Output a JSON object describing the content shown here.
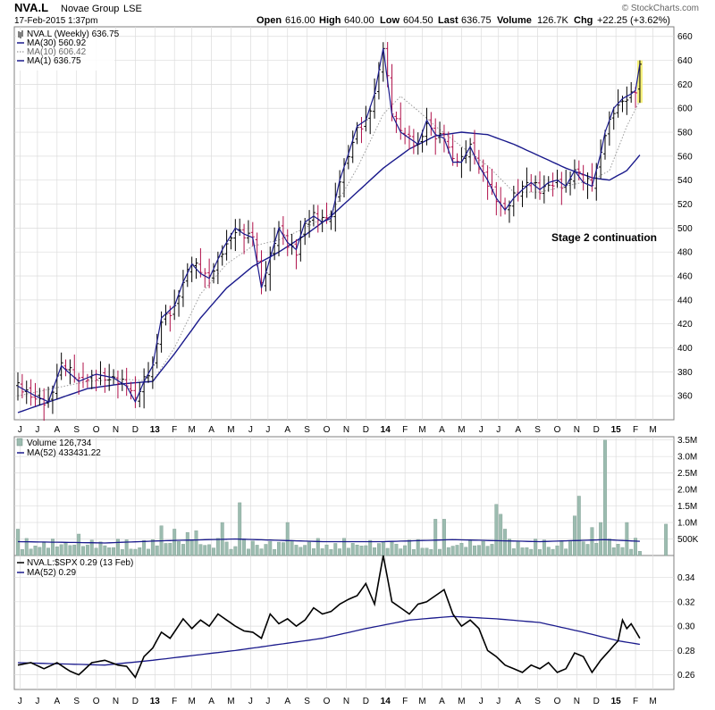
{
  "header": {
    "symbol": "NVA.L",
    "company": "Novae Group",
    "exchange": "LSE",
    "date": "17-Feb-2015 1:37pm",
    "open_label": "Open",
    "open": "616.00",
    "high_label": "High",
    "high": "640.00",
    "low_label": "Low",
    "low": "604.50",
    "last_label": "Last",
    "last": "636.75",
    "volume_label": "Volume",
    "volume": "126.7K",
    "chg_label": "Chg",
    "chg": "+22.25 (+3.62%)",
    "brand": "© StockCharts.com"
  },
  "colors": {
    "up": "#000000",
    "down": "#b0104a",
    "ma30": "#1a1a8c",
    "ma10": "#9a9a9a",
    "volume": "#9cbcb0",
    "highlight": "#f5f07a",
    "grid": "#dcdcdc"
  },
  "chart_data": [
    {
      "type": "line",
      "panel": "price",
      "legend": [
        {
          "text": "NVA.L (Weekly) 636.75",
          "icon": "candle-icon"
        },
        {
          "text": "MA(30) 560.92",
          "icon": "solid-line-icon"
        },
        {
          "text": "MA(10) 606.42",
          "icon": "dotted-line-icon"
        },
        {
          "text": "MA(1) 636.75",
          "icon": "solid-line-icon"
        }
      ],
      "annotation": "Stage 2 continuation",
      "ylim": [
        340,
        668
      ],
      "y_ticks": [
        360,
        380,
        400,
        420,
        440,
        460,
        480,
        500,
        520,
        540,
        560,
        580,
        600,
        620,
        640,
        660
      ],
      "x_range": [
        0,
        150
      ],
      "x_ticks": [
        {
          "label": "J",
          "x": 0.5
        },
        {
          "label": "J",
          "x": 4.5
        },
        {
          "label": "A",
          "x": 9
        },
        {
          "label": "S",
          "x": 13.5
        },
        {
          "label": "O",
          "x": 18
        },
        {
          "label": "N",
          "x": 22.5
        },
        {
          "label": "D",
          "x": 27
        },
        {
          "label": "13",
          "x": 31.5
        },
        {
          "label": "F",
          "x": 36
        },
        {
          "label": "M",
          "x": 40
        },
        {
          "label": "A",
          "x": 44.5
        },
        {
          "label": "M",
          "x": 49
        },
        {
          "label": "J",
          "x": 53.5
        },
        {
          "label": "J",
          "x": 57.5
        },
        {
          "label": "A",
          "x": 62
        },
        {
          "label": "S",
          "x": 66.5
        },
        {
          "label": "O",
          "x": 71
        },
        {
          "label": "N",
          "x": 75.5
        },
        {
          "label": "D",
          "x": 80
        },
        {
          "label": "14",
          "x": 84.5
        },
        {
          "label": "F",
          "x": 89
        },
        {
          "label": "M",
          "x": 93
        },
        {
          "label": "A",
          "x": 97.5
        },
        {
          "label": "M",
          "x": 102
        },
        {
          "label": "J",
          "x": 106.5
        },
        {
          "label": "J",
          "x": 110.5
        },
        {
          "label": "A",
          "x": 115
        },
        {
          "label": "S",
          "x": 119.5
        },
        {
          "label": "O",
          "x": 124
        },
        {
          "label": "N",
          "x": 128.5
        },
        {
          "label": "D",
          "x": 133
        },
        {
          "label": "15",
          "x": 137.5
        },
        {
          "label": "F",
          "x": 142
        },
        {
          "label": "M",
          "x": 146
        }
      ],
      "close_keyframes": [
        [
          0,
          368
        ],
        [
          4,
          360
        ],
        [
          7,
          355
        ],
        [
          10,
          385
        ],
        [
          14,
          372
        ],
        [
          18,
          378
        ],
        [
          22,
          375
        ],
        [
          25,
          368
        ],
        [
          27,
          355
        ],
        [
          29,
          372
        ],
        [
          31,
          385
        ],
        [
          33,
          425
        ],
        [
          36,
          435
        ],
        [
          38,
          455
        ],
        [
          40,
          470
        ],
        [
          42,
          462
        ],
        [
          44,
          458
        ],
        [
          47,
          482
        ],
        [
          50,
          500
        ],
        [
          52,
          495
        ],
        [
          54,
          492
        ],
        [
          56,
          450
        ],
        [
          58,
          475
        ],
        [
          60,
          500
        ],
        [
          62,
          488
        ],
        [
          64,
          482
        ],
        [
          66,
          505
        ],
        [
          68,
          510
        ],
        [
          70,
          505
        ],
        [
          72,
          508
        ],
        [
          74,
          540
        ],
        [
          76,
          562
        ],
        [
          78,
          585
        ],
        [
          80,
          590
        ],
        [
          82,
          612
        ],
        [
          84,
          650
        ],
        [
          86,
          595
        ],
        [
          88,
          580
        ],
        [
          90,
          575
        ],
        [
          92,
          570
        ],
        [
          94,
          590
        ],
        [
          96,
          578
        ],
        [
          98,
          575
        ],
        [
          100,
          555
        ],
        [
          102,
          555
        ],
        [
          104,
          568
        ],
        [
          106,
          552
        ],
        [
          108,
          540
        ],
        [
          110,
          525
        ],
        [
          112,
          515
        ],
        [
          114,
          525
        ],
        [
          116,
          532
        ],
        [
          118,
          538
        ],
        [
          120,
          532
        ],
        [
          122,
          538
        ],
        [
          124,
          540
        ],
        [
          126,
          535
        ],
        [
          128,
          548
        ],
        [
          130,
          538
        ],
        [
          132,
          535
        ],
        [
          134,
          562
        ],
        [
          135,
          580
        ],
        [
          137,
          600
        ],
        [
          139,
          608
        ],
        [
          141,
          612
        ],
        [
          142,
          615
        ],
        [
          143,
          636.75
        ]
      ],
      "ma30_keyframes": [
        [
          0,
          346
        ],
        [
          8,
          356
        ],
        [
          16,
          366
        ],
        [
          24,
          370
        ],
        [
          31,
          372
        ],
        [
          36,
          395
        ],
        [
          42,
          425
        ],
        [
          48,
          450
        ],
        [
          54,
          468
        ],
        [
          60,
          480
        ],
        [
          66,
          494
        ],
        [
          72,
          510
        ],
        [
          78,
          530
        ],
        [
          84,
          550
        ],
        [
          90,
          566
        ],
        [
          96,
          577
        ],
        [
          102,
          580
        ],
        [
          108,
          578
        ],
        [
          114,
          570
        ],
        [
          120,
          560
        ],
        [
          126,
          550
        ],
        [
          132,
          542
        ],
        [
          136,
          540
        ],
        [
          140,
          548
        ],
        [
          143,
          560.92
        ]
      ],
      "ma10_keyframes": [
        [
          0,
          360
        ],
        [
          8,
          366
        ],
        [
          16,
          372
        ],
        [
          24,
          374
        ],
        [
          31,
          372
        ],
        [
          36,
          400
        ],
        [
          42,
          445
        ],
        [
          48,
          470
        ],
        [
          54,
          485
        ],
        [
          60,
          490
        ],
        [
          66,
          500
        ],
        [
          72,
          512
        ],
        [
          78,
          550
        ],
        [
          84,
          595
        ],
        [
          88,
          610
        ],
        [
          92,
          598
        ],
        [
          96,
          585
        ],
        [
          102,
          568
        ],
        [
          108,
          552
        ],
        [
          114,
          530
        ],
        [
          120,
          530
        ],
        [
          126,
          535
        ],
        [
          132,
          540
        ],
        [
          136,
          548
        ],
        [
          140,
          585
        ],
        [
          143,
          606.42
        ]
      ],
      "last_bar": {
        "open": 616.0,
        "high": 640.0,
        "low": 604.5,
        "close": 636.75
      }
    },
    {
      "type": "bar",
      "panel": "volume",
      "legend": [
        {
          "text": "Volume 126,734",
          "icon": "bar-icon"
        },
        {
          "text": "MA(52) 433431.22",
          "icon": "solid-line-icon"
        }
      ],
      "ylim": [
        0,
        3.6
      ],
      "y_ticks": [
        {
          "value": 0.5,
          "label": "500K"
        },
        {
          "value": 1.0,
          "label": "1.0M"
        },
        {
          "value": 1.5,
          "label": "1.5M"
        },
        {
          "value": 2.0,
          "label": "2.0M"
        },
        {
          "value": 2.5,
          "label": "2.5M"
        },
        {
          "value": 3.0,
          "label": "3.0M"
        },
        {
          "value": 3.5,
          "label": "3.5M"
        }
      ],
      "spikes": [
        {
          "x": 0,
          "v": 0.8
        },
        {
          "x": 14,
          "v": 0.65
        },
        {
          "x": 33,
          "v": 0.9
        },
        {
          "x": 36,
          "v": 0.8
        },
        {
          "x": 39,
          "v": 0.7
        },
        {
          "x": 41,
          "v": 0.75
        },
        {
          "x": 47,
          "v": 1.0
        },
        {
          "x": 51,
          "v": 1.6
        },
        {
          "x": 62,
          "v": 1.0
        },
        {
          "x": 96,
          "v": 1.1
        },
        {
          "x": 98,
          "v": 1.1
        },
        {
          "x": 110,
          "v": 1.55
        },
        {
          "x": 128,
          "v": 1.2
        },
        {
          "x": 129,
          "v": 1.8
        },
        {
          "x": 132,
          "v": 0.85
        },
        {
          "x": 134,
          "v": 1.0
        },
        {
          "x": 140,
          "v": 1.0
        },
        {
          "x": 111,
          "v": 1.25
        },
        {
          "x": 112,
          "v": 0.8
        },
        {
          "x": 134.5,
          "v": 0.65
        },
        {
          "x": 135,
          "v": 3.5
        },
        {
          "x": 149,
          "v": 0.95
        }
      ],
      "ma52_keyframes": [
        [
          0,
          0.42
        ],
        [
          20,
          0.38
        ],
        [
          34,
          0.45
        ],
        [
          50,
          0.5
        ],
        [
          70,
          0.42
        ],
        [
          84,
          0.42
        ],
        [
          100,
          0.48
        ],
        [
          120,
          0.42
        ],
        [
          135,
          0.48
        ],
        [
          143,
          0.43
        ]
      ],
      "last_volume": 0.127
    },
    {
      "type": "line",
      "panel": "relative",
      "legend": [
        {
          "text": "NVA.L:$SPX 0.29 (13 Feb)",
          "icon": "solid-line-icon"
        },
        {
          "text": "MA(52) 0.29",
          "icon": "solid-line-icon"
        }
      ],
      "ylim": [
        0.248,
        0.358
      ],
      "y_ticks": [
        0.26,
        0.28,
        0.3,
        0.32,
        0.34
      ],
      "ratio_keyframes": [
        [
          0,
          0.268
        ],
        [
          3,
          0.27
        ],
        [
          6,
          0.265
        ],
        [
          9,
          0.27
        ],
        [
          12,
          0.263
        ],
        [
          14,
          0.26
        ],
        [
          17,
          0.27
        ],
        [
          20,
          0.272
        ],
        [
          23,
          0.268
        ],
        [
          25,
          0.267
        ],
        [
          27,
          0.258
        ],
        [
          29,
          0.275
        ],
        [
          31,
          0.282
        ],
        [
          33,
          0.295
        ],
        [
          35,
          0.29
        ],
        [
          38,
          0.306
        ],
        [
          40,
          0.298
        ],
        [
          42,
          0.305
        ],
        [
          44,
          0.3
        ],
        [
          46,
          0.31
        ],
        [
          48,
          0.305
        ],
        [
          50,
          0.3
        ],
        [
          52,
          0.296
        ],
        [
          54,
          0.295
        ],
        [
          56,
          0.29
        ],
        [
          58,
          0.31
        ],
        [
          60,
          0.302
        ],
        [
          62,
          0.306
        ],
        [
          64,
          0.3
        ],
        [
          66,
          0.305
        ],
        [
          68,
          0.315
        ],
        [
          70,
          0.31
        ],
        [
          72,
          0.312
        ],
        [
          74,
          0.318
        ],
        [
          76,
          0.322
        ],
        [
          78,
          0.325
        ],
        [
          80,
          0.335
        ],
        [
          82,
          0.318
        ],
        [
          84,
          0.358
        ],
        [
          86,
          0.32
        ],
        [
          88,
          0.315
        ],
        [
          90,
          0.31
        ],
        [
          92,
          0.318
        ],
        [
          94,
          0.32
        ],
        [
          96,
          0.325
        ],
        [
          98,
          0.33
        ],
        [
          100,
          0.31
        ],
        [
          102,
          0.3
        ],
        [
          104,
          0.305
        ],
        [
          106,
          0.298
        ],
        [
          108,
          0.28
        ],
        [
          110,
          0.275
        ],
        [
          112,
          0.268
        ],
        [
          114,
          0.265
        ],
        [
          116,
          0.262
        ],
        [
          118,
          0.268
        ],
        [
          120,
          0.265
        ],
        [
          122,
          0.27
        ],
        [
          124,
          0.262
        ],
        [
          126,
          0.265
        ],
        [
          128,
          0.278
        ],
        [
          130,
          0.275
        ],
        [
          132,
          0.262
        ],
        [
          134,
          0.272
        ],
        [
          136,
          0.28
        ],
        [
          138,
          0.288
        ],
        [
          139,
          0.305
        ],
        [
          140,
          0.298
        ],
        [
          141,
          0.302
        ],
        [
          143,
          0.29
        ]
      ],
      "ma52_keyframes": [
        [
          0,
          0.27
        ],
        [
          20,
          0.268
        ],
        [
          31,
          0.272
        ],
        [
          50,
          0.28
        ],
        [
          70,
          0.29
        ],
        [
          80,
          0.298
        ],
        [
          90,
          0.305
        ],
        [
          100,
          0.308
        ],
        [
          110,
          0.306
        ],
        [
          120,
          0.303
        ],
        [
          130,
          0.295
        ],
        [
          138,
          0.288
        ],
        [
          143,
          0.285
        ]
      ]
    }
  ]
}
